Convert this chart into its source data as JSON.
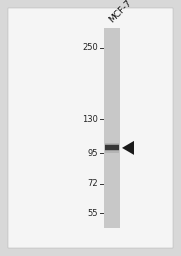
{
  "bg_color": "#d8d8d8",
  "panel_bg": "#f5f5f5",
  "lane_label": "MCF-7",
  "mw_markers": [
    250,
    130,
    95,
    72,
    55
  ],
  "band_mw": 100,
  "title_fontsize": 6.5,
  "marker_fontsize": 6.0,
  "band_color": "#2a2a2a",
  "lane_bg_color": "#c8c8c8",
  "arrow_color": "#1a1a1a",
  "tick_color": "#333333",
  "text_color": "#222222"
}
